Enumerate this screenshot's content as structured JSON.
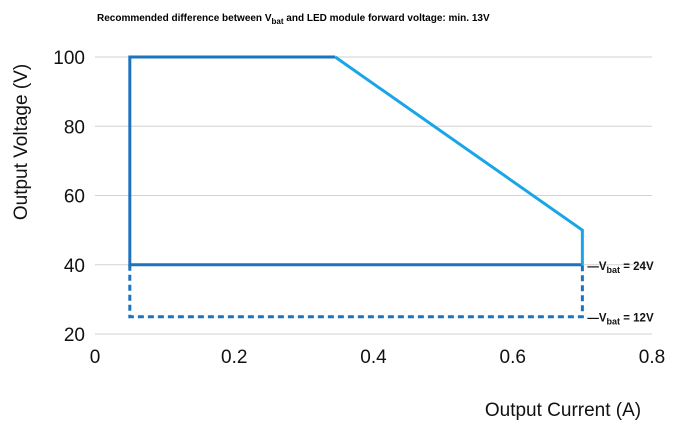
{
  "chart_data": {
    "type": "line",
    "note": {
      "before": "Recommended difference between V",
      "sub": "bat",
      "after": " and LED module forward voltage: min. 13V"
    },
    "xlabel": "Output Current (A)",
    "ylabel": "Output Voltage (V)",
    "xlim": [
      0,
      0.8
    ],
    "ylim": [
      20,
      100
    ],
    "x_ticks": [
      0,
      0.2,
      0.4,
      0.6,
      0.8
    ],
    "x_tick_labels": [
      "0",
      "0.2",
      "0.4",
      "0.6",
      "0.8"
    ],
    "y_ticks": [
      20,
      40,
      60,
      80,
      100
    ],
    "y_tick_labels": [
      "20",
      "40",
      "60",
      "80",
      "100"
    ],
    "grid": true,
    "series": [
      {
        "style": "solid-dark",
        "color": "#1e73be",
        "points": [
          [
            0.7,
            40
          ],
          [
            0.05,
            40
          ],
          [
            0.05,
            100
          ],
          [
            0.345,
            100
          ]
        ]
      },
      {
        "style": "solid-light",
        "color": "#1aa6e6",
        "points": [
          [
            0.345,
            100
          ],
          [
            0.7,
            50
          ],
          [
            0.7,
            40
          ]
        ]
      },
      {
        "style": "dashed",
        "color": "#1e73be",
        "points": [
          [
            0.05,
            40
          ],
          [
            0.05,
            25
          ],
          [
            0.7,
            25
          ],
          [
            0.7,
            40
          ]
        ]
      }
    ],
    "annotations": [
      {
        "y": 40,
        "prefix": "—V",
        "sub": "bat",
        "suffix": " = 24V"
      },
      {
        "y": 25,
        "prefix": "—V",
        "sub": "bat",
        "suffix": " = 12V"
      }
    ]
  }
}
